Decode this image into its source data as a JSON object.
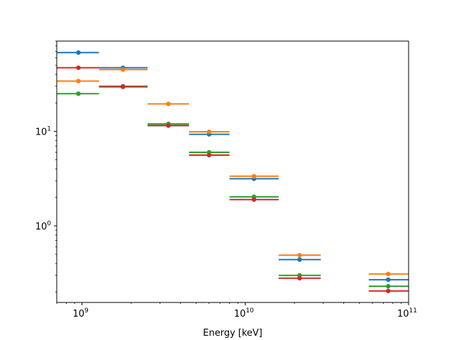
{
  "chart_data": {
    "type": "scatter",
    "title": "",
    "xlabel": "Energy [keV]",
    "ylabel": "",
    "xscale": "log",
    "yscale": "log",
    "xlim": [
      700000000.0,
      100000000000.0
    ],
    "ylim": [
      0.155,
      90
    ],
    "grid": false,
    "legend": "none",
    "x_ticks": [
      {
        "value": 1000000000.0,
        "base": "10",
        "exp": "9"
      },
      {
        "value": 10000000000.0,
        "base": "10",
        "exp": "10"
      },
      {
        "value": 100000000000.0,
        "base": "10",
        "exp": "11"
      }
    ],
    "y_ticks": [
      {
        "value": 1,
        "base": "10",
        "exp": "0"
      },
      {
        "value": 10,
        "base": "10",
        "exp": "1"
      }
    ],
    "bins": [
      {
        "center": 950000000.0,
        "low": 700000000.0,
        "high": 1270000000.0
      },
      {
        "center": 1780000000.0,
        "low": 1270000000.0,
        "high": 2520000000.0
      },
      {
        "center": 3380000000.0,
        "low": 2520000000.0,
        "high": 4520000000.0
      },
      {
        "center": 6000000000.0,
        "low": 4520000000.0,
        "high": 8000000000.0
      },
      {
        "center": 11300000000.0,
        "low": 8000000000.0,
        "high": 16000000000.0
      },
      {
        "center": 21500000000.0,
        "low": 16000000000.0,
        "high": 29000000000.0
      },
      {
        "center": 75000000000.0,
        "low": 57000000000.0,
        "high": 100000000000.0
      }
    ],
    "series": [
      {
        "color": "#1f77b4",
        "values": [
          68,
          47,
          11.5,
          9.3,
          3.15,
          0.44,
          0.27
        ]
      },
      {
        "color": "#ff7f0e",
        "values": [
          34,
          45,
          19.5,
          9.9,
          3.35,
          0.49,
          0.31
        ]
      },
      {
        "color": "#2ca02c",
        "values": [
          25,
          30,
          12,
          6.0,
          2.03,
          0.3,
          0.23
        ]
      },
      {
        "color": "#d62728",
        "values": [
          47,
          29.5,
          11.5,
          5.6,
          1.9,
          0.28,
          0.205
        ]
      }
    ]
  }
}
